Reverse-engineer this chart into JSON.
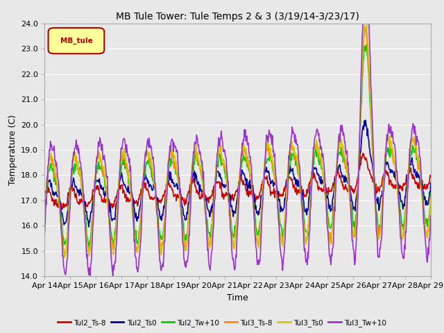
{
  "title": "MB Tule Tower: Tule Temps 2 & 3 (3/19/14-3/23/17)",
  "xlabel": "Time",
  "ylabel": "Temperature (C)",
  "ylim": [
    14.0,
    24.0
  ],
  "yticks": [
    14.0,
    15.0,
    16.0,
    17.0,
    18.0,
    19.0,
    20.0,
    21.0,
    22.0,
    23.0,
    24.0
  ],
  "xtick_labels": [
    "Apr 14",
    "Apr 15",
    "Apr 16",
    "Apr 17",
    "Apr 18",
    "Apr 19",
    "Apr 20",
    "Apr 21",
    "Apr 22",
    "Apr 23",
    "Apr 24",
    "Apr 25",
    "Apr 26",
    "Apr 27",
    "Apr 28",
    "Apr 29"
  ],
  "legend_label": "MB_tule",
  "legend_bg": "#ffff99",
  "legend_border": "#aa0000",
  "series": [
    {
      "label": "Tul2_Ts-8",
      "color": "#cc0000"
    },
    {
      "label": "Tul2_Ts0",
      "color": "#000099"
    },
    {
      "label": "Tul2_Tw+10",
      "color": "#00cc00"
    },
    {
      "label": "Tul3_Ts-8",
      "color": "#ff8800"
    },
    {
      "label": "Tul3_Ts0",
      "color": "#cccc00"
    },
    {
      "label": "Tul3_Tw+10",
      "color": "#9933cc"
    }
  ],
  "bg_color": "#e8e8e8",
  "grid_color": "#ffffff",
  "title_fontsize": 10,
  "axis_fontsize": 9,
  "tick_fontsize": 8
}
